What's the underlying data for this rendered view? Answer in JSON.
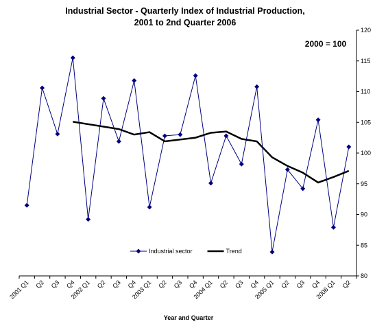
{
  "chart_data": {
    "type": "line",
    "title": [
      "Industrial Sector - Quarterly Index of Industrial Production,",
      "2001 to 2nd Quarter 2006"
    ],
    "annotation": "2000 = 100",
    "x_label": "Year and Quarter",
    "categories": [
      "2001 Q1",
      "Q2",
      "Q3",
      "Q4",
      "2002 Q1",
      "Q2",
      "Q3",
      "Q4",
      "2003 Q1",
      "Q2",
      "Q3",
      "Q4",
      "2004 Q1",
      "Q2",
      "Q3",
      "Q4",
      "2005 Q1",
      "Q2",
      "Q3",
      "Q4",
      "2006 Q1",
      "Q2"
    ],
    "series": [
      {
        "name": "Industrial sector",
        "color": "#000080",
        "marker": "diamond",
        "width": 1,
        "values": [
          91.5,
          110.6,
          103.1,
          115.5,
          89.2,
          108.9,
          101.9,
          111.8,
          91.2,
          102.8,
          103.0,
          112.6,
          95.1,
          102.8,
          98.2,
          110.8,
          83.9,
          97.3,
          94.2,
          105.4,
          87.9,
          101.0
        ]
      },
      {
        "name": "Trend",
        "color": "#000000",
        "marker": "none",
        "width": 2.5,
        "values": [
          null,
          null,
          null,
          105.1,
          104.7,
          104.3,
          103.9,
          103.0,
          103.4,
          101.9,
          102.2,
          102.5,
          103.3,
          103.5,
          102.3,
          101.9,
          99.3,
          97.9,
          96.8,
          95.2,
          96.1,
          97.1
        ]
      }
    ],
    "ylim": [
      80,
      120
    ],
    "yticks": [
      80,
      85,
      90,
      95,
      100,
      105,
      110,
      115,
      120
    ],
    "y_axis_side": "right",
    "grid": false,
    "legend": "bottom-left"
  }
}
